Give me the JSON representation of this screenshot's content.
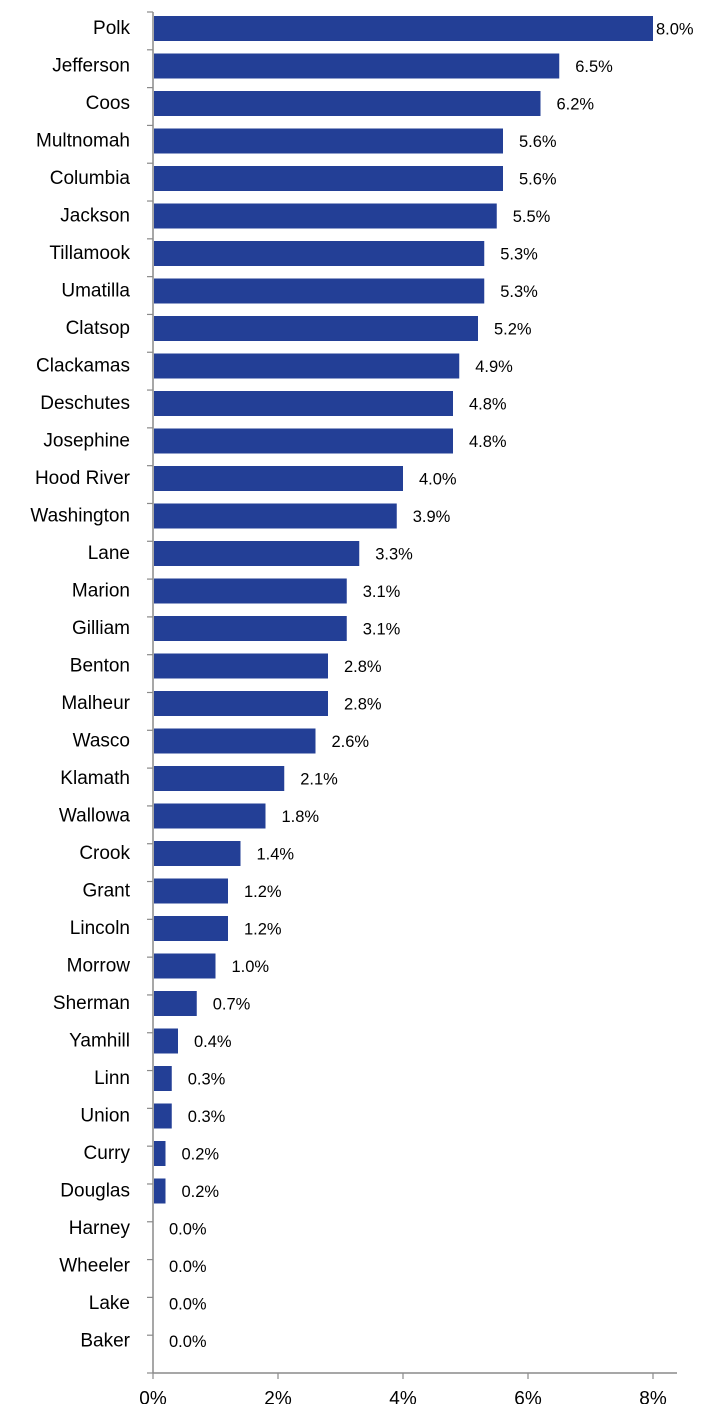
{
  "chart_data": {
    "type": "bar",
    "orientation": "horizontal",
    "title": "",
    "xlabel": "",
    "ylabel": "",
    "categories": [
      "Polk",
      "Jefferson",
      "Coos",
      "Multnomah",
      "Columbia",
      "Jackson",
      "Tillamook",
      "Umatilla",
      "Clatsop",
      "Clackamas",
      "Deschutes",
      "Josephine",
      "Hood River",
      "Washington",
      "Lane",
      "Marion",
      "Gilliam",
      "Benton",
      "Malheur",
      "Wasco",
      "Klamath",
      "Wallowa",
      "Crook",
      "Grant",
      "Lincoln",
      "Morrow",
      "Sherman",
      "Yamhill",
      "Linn",
      "Union",
      "Curry",
      "Douglas",
      "Harney",
      "Wheeler",
      "Lake",
      "Baker"
    ],
    "values": [
      8.0,
      6.5,
      6.2,
      5.6,
      5.6,
      5.5,
      5.3,
      5.3,
      5.2,
      4.9,
      4.8,
      4.8,
      4.0,
      3.9,
      3.3,
      3.1,
      3.1,
      2.8,
      2.8,
      2.6,
      2.1,
      1.8,
      1.4,
      1.2,
      1.2,
      1.0,
      0.7,
      0.4,
      0.3,
      0.3,
      0.2,
      0.2,
      0.0,
      0.0,
      0.0,
      0.0
    ],
    "data_labels": [
      "8.0%",
      "6.5%",
      "6.2%",
      "5.6%",
      "5.6%",
      "5.5%",
      "5.3%",
      "5.3%",
      "5.2%",
      "4.9%",
      "4.8%",
      "4.8%",
      "4.0%",
      "3.9%",
      "3.3%",
      "3.1%",
      "3.1%",
      "2.8%",
      "2.8%",
      "2.6%",
      "2.1%",
      "1.8%",
      "1.4%",
      "1.2%",
      "1.2%",
      "1.0%",
      "0.7%",
      "0.4%",
      "0.3%",
      "0.3%",
      "0.2%",
      "0.2%",
      "0.0%",
      "0.0%",
      "0.0%",
      "0.0%"
    ],
    "xlim": [
      0,
      8
    ],
    "x_ticks": [
      0,
      2,
      4,
      6,
      8
    ],
    "x_tick_labels": [
      "0%",
      "2%",
      "4%",
      "6%",
      "8%"
    ],
    "grid": false,
    "legend": "none",
    "bar_color": "#233F96"
  }
}
